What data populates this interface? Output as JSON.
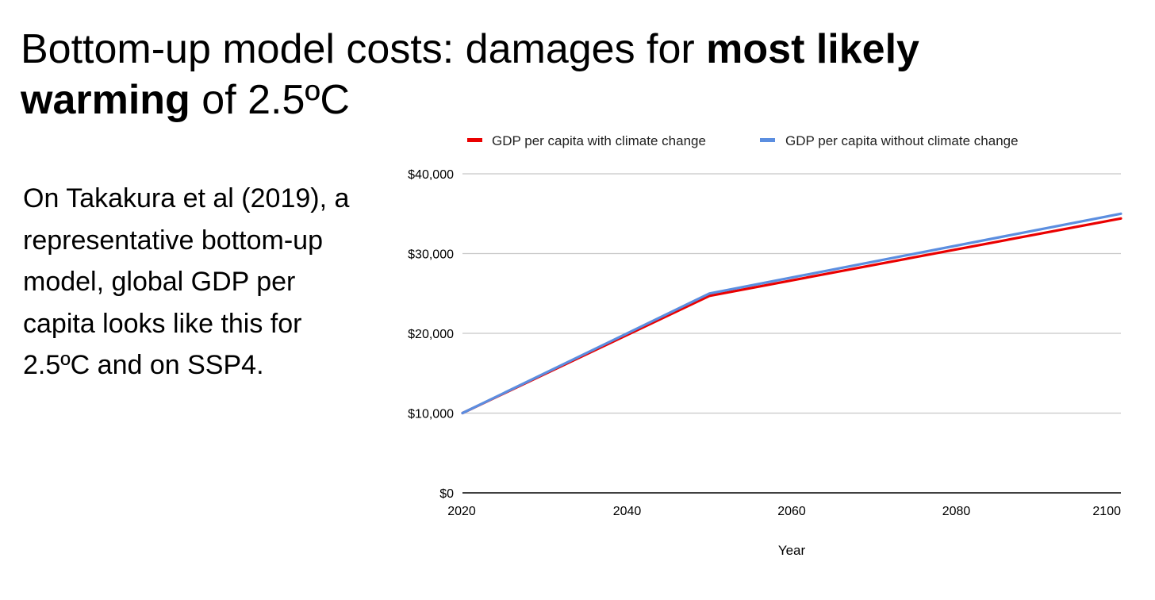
{
  "slide": {
    "title_part1": "Bottom-up model costs: damages for ",
    "title_bold1": "most likely",
    "title_bold2": "warming",
    "title_part2": " of 2.5ºC",
    "body": "On Takakura et al (2019), a representative bottom-up model, global GDP per capita looks like this for 2.5ºC and on SSP4."
  },
  "chart_data": {
    "type": "line",
    "title": "",
    "xlabel": "Year",
    "ylabel": "",
    "xlim": [
      2020,
      2100
    ],
    "ylim": [
      0,
      40000
    ],
    "x_ticks": [
      2020,
      2040,
      2060,
      2080,
      2100
    ],
    "y_ticks": [
      0,
      10000,
      20000,
      30000,
      40000
    ],
    "y_tick_labels": [
      "$0",
      "$10,000",
      "$20,000",
      "$30,000",
      "$40,000"
    ],
    "x": [
      2020,
      2050,
      2100
    ],
    "grid": true,
    "legend_position": "top",
    "series": [
      {
        "name": "GDP per capita with climate change",
        "color": "#ea0000",
        "values": [
          10000,
          24700,
          34400
        ]
      },
      {
        "name": "GDP per capita without climate change",
        "color": "#5b8ee0",
        "values": [
          10000,
          25000,
          35000
        ]
      }
    ]
  }
}
